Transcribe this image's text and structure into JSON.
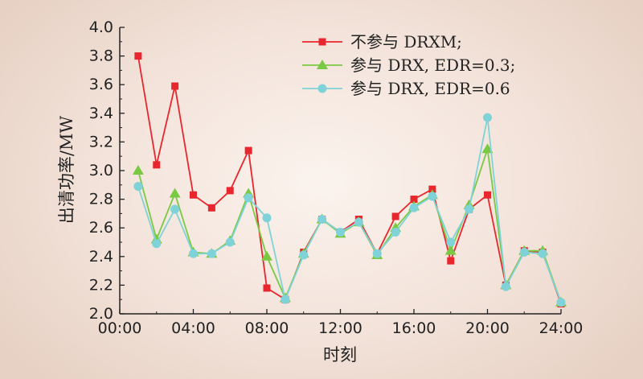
{
  "chart_data": {
    "type": "line",
    "xlabel": "时刻",
    "ylabel": "出清功率/MW",
    "xlim": [
      0,
      24
    ],
    "ylim": [
      2.0,
      4.0
    ],
    "x_ticks": [
      "00:00",
      "04:00",
      "08:00",
      "12:00",
      "16:00",
      "20:00",
      "24:00"
    ],
    "y_ticks": [
      "2.0",
      "2.2",
      "2.4",
      "2.6",
      "2.8",
      "3.0",
      "3.2",
      "3.4",
      "3.6",
      "3.8",
      "4.0"
    ],
    "x_hours": [
      1,
      2,
      3,
      4,
      5,
      6,
      7,
      8,
      9,
      10,
      11,
      12,
      13,
      14,
      15,
      16,
      17,
      18,
      19,
      20,
      21,
      22,
      23,
      24
    ],
    "legend_position": "top-right",
    "series": [
      {
        "name": "不参与 DRXM;",
        "color": "#e8262d",
        "marker": "square",
        "values": [
          3.8,
          3.04,
          3.59,
          2.83,
          2.74,
          2.86,
          3.14,
          2.18,
          2.1,
          2.43,
          2.66,
          2.57,
          2.66,
          2.42,
          2.68,
          2.8,
          2.87,
          2.37,
          2.73,
          2.83,
          2.2,
          2.44,
          2.43,
          2.07
        ]
      },
      {
        "name": "参与 DRX, EDR=0.3;",
        "color": "#7ac943",
        "marker": "triangle",
        "values": [
          3.0,
          2.52,
          2.84,
          2.43,
          2.42,
          2.51,
          2.84,
          2.4,
          2.11,
          2.42,
          2.66,
          2.56,
          2.64,
          2.41,
          2.6,
          2.75,
          2.83,
          2.44,
          2.76,
          3.15,
          2.2,
          2.44,
          2.44,
          2.08
        ]
      },
      {
        "name": "参与 DRX, EDR=0.6",
        "color": "#7fd3d8",
        "marker": "circle",
        "values": [
          2.89,
          2.49,
          2.73,
          2.42,
          2.42,
          2.5,
          2.81,
          2.67,
          2.1,
          2.41,
          2.66,
          2.57,
          2.64,
          2.42,
          2.57,
          2.74,
          2.82,
          2.5,
          2.73,
          3.37,
          2.19,
          2.43,
          2.42,
          2.08
        ]
      }
    ]
  }
}
